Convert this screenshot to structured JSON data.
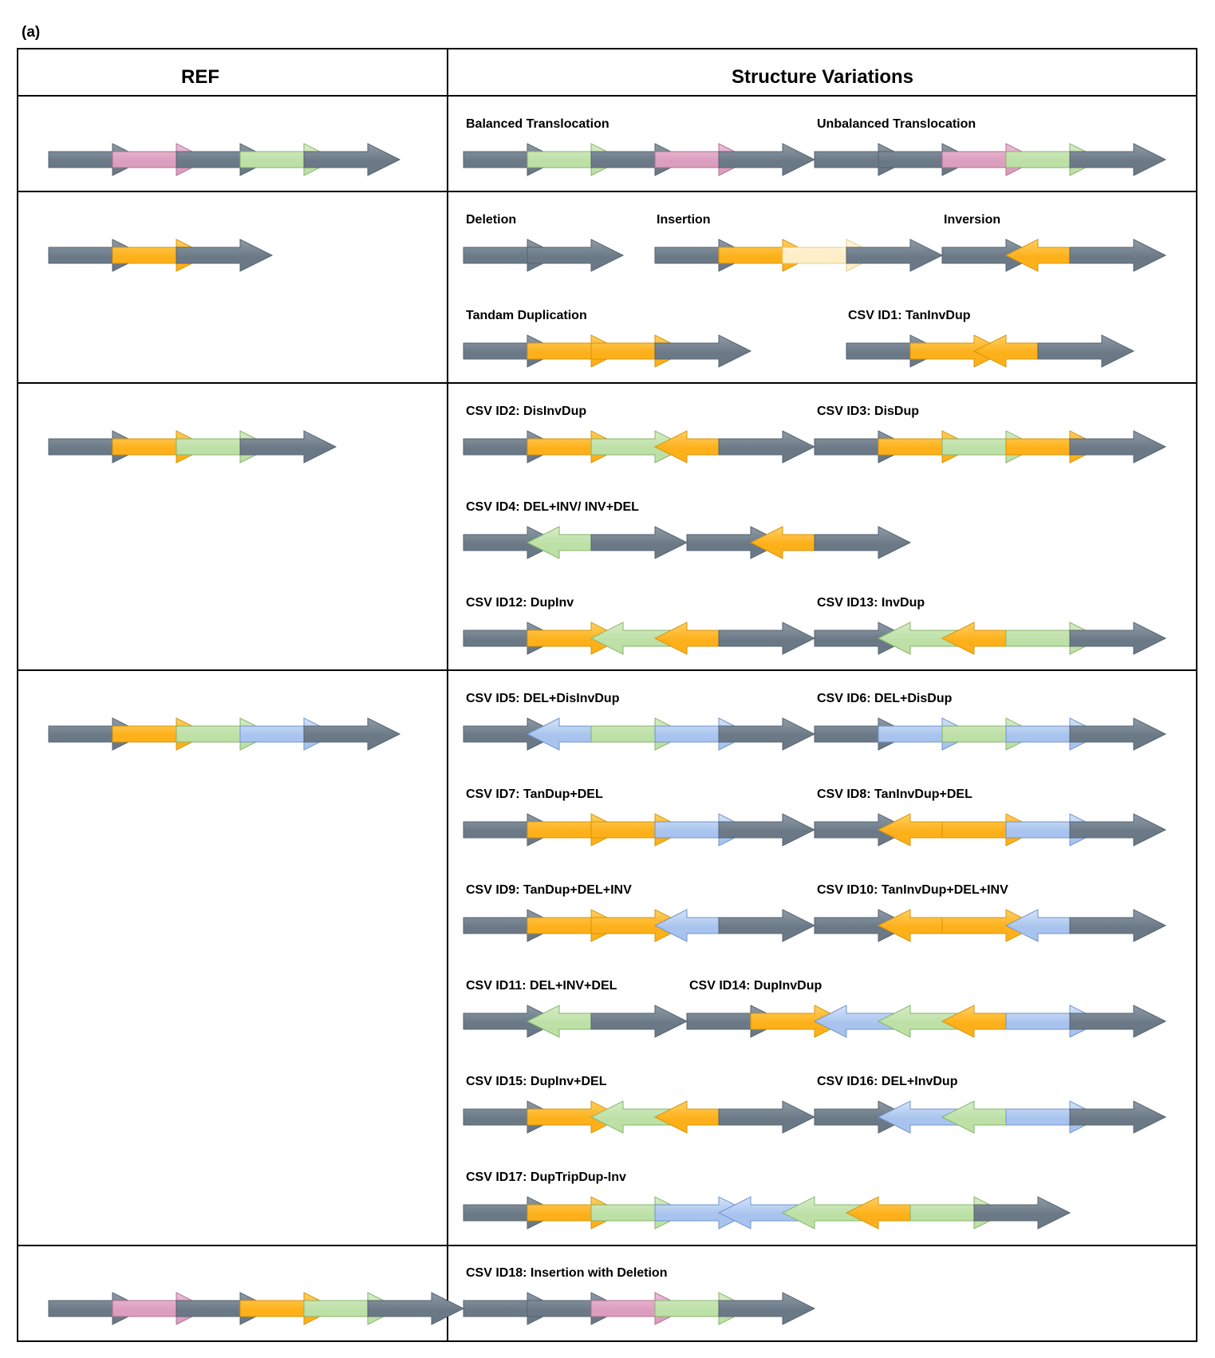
{
  "panel_label": "(a)",
  "headers": {
    "ref": "REF",
    "variations": "Structure Variations"
  },
  "colors": {
    "gray": [
      "#8f9ba6",
      "#6b7987",
      "#556370"
    ],
    "pink": [
      "#ecc0d8",
      "#dc9ebf",
      "#b06d93"
    ],
    "green": [
      "#d7ecc7",
      "#bde0a6",
      "#86b46a"
    ],
    "orange": [
      "#ffd064",
      "#fdb019",
      "#d79409"
    ],
    "blue": [
      "#d5e4f8",
      "#a8c4ee",
      "#6f93cc"
    ],
    "lightorange": [
      "#fff6dd",
      "#ffeec6",
      "#e7cd8c"
    ],
    "border": "#000000"
  },
  "rows": [
    {
      "ref": [
        "gray",
        "pink",
        "gray",
        "green",
        "gray"
      ],
      "variants": [
        {
          "label": "Balanced Translocation",
          "segments": [
            [
              "gray",
              1
            ],
            [
              "green",
              1
            ],
            [
              "gray",
              1
            ],
            [
              "pink",
              1
            ],
            [
              "gray",
              1
            ]
          ]
        },
        {
          "label": "Unbalanced Translocation",
          "segments": [
            [
              "gray",
              1
            ],
            [
              "gray",
              1
            ],
            [
              "pink",
              1
            ],
            [
              "green",
              1
            ],
            [
              "gray",
              1
            ]
          ]
        }
      ]
    },
    {
      "ref": [
        "gray",
        "orange",
        "gray"
      ],
      "variants": [
        {
          "label": "Deletion",
          "segments": [
            [
              "gray",
              1
            ],
            [
              "gray",
              1
            ]
          ]
        },
        {
          "label": "Insertion",
          "segments": [
            [
              "gray",
              1
            ],
            [
              "orange",
              1
            ],
            [
              "lightorange",
              1
            ],
            [
              "gray",
              1
            ]
          ]
        },
        {
          "label": "Inversion",
          "segments": [
            [
              "gray",
              1
            ],
            [
              "orange",
              -1
            ],
            [
              "gray",
              1
            ]
          ]
        },
        {
          "label": "Tandam Duplication",
          "segments": [
            [
              "gray",
              1
            ],
            [
              "orange",
              1
            ],
            [
              "orange",
              1
            ],
            [
              "gray",
              1
            ]
          ]
        },
        {
          "label": "CSV ID1: TanInvDup",
          "segments": [
            [
              "gray",
              1
            ],
            [
              "orange",
              1
            ],
            [
              "orange",
              -1
            ],
            [
              "gray",
              1
            ]
          ]
        }
      ]
    },
    {
      "ref": [
        "gray",
        "orange",
        "green",
        "gray"
      ],
      "variants": [
        {
          "label": "CSV ID2: DisInvDup",
          "segments": [
            [
              "gray",
              1
            ],
            [
              "orange",
              1
            ],
            [
              "green",
              1
            ],
            [
              "orange",
              -1
            ],
            [
              "gray",
              1
            ]
          ]
        },
        {
          "label": "CSV ID3: DisDup",
          "segments": [
            [
              "gray",
              1
            ],
            [
              "orange",
              1
            ],
            [
              "green",
              1
            ],
            [
              "orange",
              1
            ],
            [
              "gray",
              1
            ]
          ]
        },
        {
          "label": "CSV ID4: DEL+INV/ INV+DEL",
          "segments": [
            [
              "gray",
              1
            ],
            [
              "green",
              -1
            ],
            [
              "gray",
              1
            ]
          ]
        },
        {
          "label": "",
          "segments": [
            [
              "gray",
              1
            ],
            [
              "orange",
              -1
            ],
            [
              "gray",
              1
            ]
          ]
        },
        {
          "label": "CSV ID12: DupInv",
          "segments": [
            [
              "gray",
              1
            ],
            [
              "orange",
              1
            ],
            [
              "green",
              -1
            ],
            [
              "orange",
              -1
            ],
            [
              "gray",
              1
            ]
          ]
        },
        {
          "label": "CSV ID13: InvDup",
          "segments": [
            [
              "gray",
              1
            ],
            [
              "green",
              -1
            ],
            [
              "orange",
              -1
            ],
            [
              "green",
              1
            ],
            [
              "gray",
              1
            ]
          ]
        }
      ]
    },
    {
      "ref": [
        "gray",
        "orange",
        "green",
        "blue",
        "gray"
      ],
      "variants": [
        {
          "label": "CSV ID5: DEL+DisInvDup",
          "segments": [
            [
              "gray",
              1
            ],
            [
              "blue",
              -1
            ],
            [
              "green",
              1
            ],
            [
              "blue",
              1
            ],
            [
              "gray",
              1
            ]
          ]
        },
        {
          "label": "CSV ID6: DEL+DisDup",
          "segments": [
            [
              "gray",
              1
            ],
            [
              "blue",
              1
            ],
            [
              "green",
              1
            ],
            [
              "blue",
              1
            ],
            [
              "gray",
              1
            ]
          ]
        },
        {
          "label": "CSV ID7: TanDup+DEL",
          "segments": [
            [
              "gray",
              1
            ],
            [
              "orange",
              1
            ],
            [
              "orange",
              1
            ],
            [
              "blue",
              1
            ],
            [
              "gray",
              1
            ]
          ]
        },
        {
          "label": "CSV ID8: TanInvDup+DEL",
          "segments": [
            [
              "gray",
              1
            ],
            [
              "orange",
              -1
            ],
            [
              "orange",
              1
            ],
            [
              "blue",
              1
            ],
            [
              "gray",
              1
            ]
          ]
        },
        {
          "label": "CSV ID9: TanDup+DEL+INV",
          "segments": [
            [
              "gray",
              1
            ],
            [
              "orange",
              1
            ],
            [
              "orange",
              1
            ],
            [
              "blue",
              -1
            ],
            [
              "gray",
              1
            ]
          ]
        },
        {
          "label": "CSV ID10: TanInvDup+DEL+INV",
          "segments": [
            [
              "gray",
              1
            ],
            [
              "orange",
              -1
            ],
            [
              "orange",
              1
            ],
            [
              "blue",
              -1
            ],
            [
              "gray",
              1
            ]
          ]
        },
        {
          "label": "CSV ID11: DEL+INV+DEL",
          "segments": [
            [
              "gray",
              1
            ],
            [
              "green",
              -1
            ],
            [
              "gray",
              1
            ]
          ]
        },
        {
          "label": "CSV ID14: DupInvDup",
          "segments": [
            [
              "gray",
              1
            ],
            [
              "orange",
              1
            ],
            [
              "blue",
              -1
            ],
            [
              "green",
              -1
            ],
            [
              "orange",
              -1
            ],
            [
              "blue",
              1
            ],
            [
              "gray",
              1
            ]
          ]
        },
        {
          "label": "CSV ID15: DupInv+DEL",
          "segments": [
            [
              "gray",
              1
            ],
            [
              "orange",
              1
            ],
            [
              "green",
              -1
            ],
            [
              "orange",
              -1
            ],
            [
              "gray",
              1
            ]
          ]
        },
        {
          "label": "CSV ID16: DEL+InvDup",
          "segments": [
            [
              "gray",
              1
            ],
            [
              "blue",
              -1
            ],
            [
              "green",
              -1
            ],
            [
              "blue",
              1
            ],
            [
              "gray",
              1
            ]
          ]
        },
        {
          "label": "CSV ID17: DupTripDup-Inv",
          "segments": [
            [
              "gray",
              1
            ],
            [
              "orange",
              1
            ],
            [
              "green",
              1
            ],
            [
              "blue",
              1
            ],
            [
              "blue",
              -1
            ],
            [
              "green",
              -1
            ],
            [
              "orange",
              -1
            ],
            [
              "green",
              1
            ],
            [
              "gray",
              1
            ]
          ]
        }
      ]
    },
    {
      "ref": [
        "gray",
        "pink",
        "gray",
        "orange",
        "green",
        "gray"
      ],
      "variants": [
        {
          "label": "CSV ID18: Insertion with Deletion",
          "segments": [
            [
              "gray",
              1
            ],
            [
              "gray",
              1
            ],
            [
              "pink",
              1
            ],
            [
              "green",
              1
            ],
            [
              "gray",
              1
            ]
          ]
        }
      ]
    }
  ]
}
